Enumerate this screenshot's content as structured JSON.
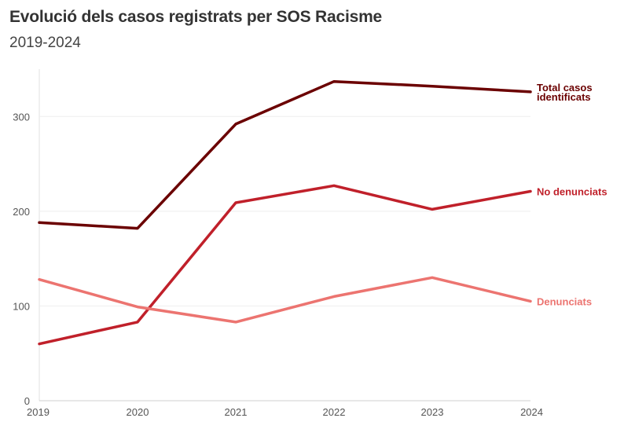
{
  "title": "Evolució dels casos registrats per SOS Racisme",
  "subtitle": "2019-2024",
  "chart_data": {
    "type": "line",
    "title": "Evolució dels casos registrats per SOS Racisme",
    "subtitle": "2019-2024",
    "x": [
      2019,
      2020,
      2021,
      2022,
      2023,
      2024
    ],
    "x_ticks": [
      "2019",
      "2020",
      "2021",
      "2022",
      "2023",
      "2024"
    ],
    "ylim": [
      0,
      350
    ],
    "y_ticks": [
      0,
      100,
      200,
      300
    ],
    "grid": true,
    "legend": "inline-right",
    "series": [
      {
        "name": "Total casos identificats",
        "label_lines": [
          "Total casos",
          "identificats"
        ],
        "color": "#6b0000",
        "values": [
          188,
          182,
          292,
          337,
          332,
          326
        ]
      },
      {
        "name": "No denunciats",
        "label_lines": [
          "No denunciats"
        ],
        "color": "#c0202a",
        "values": [
          60,
          83,
          209,
          227,
          202,
          221
        ]
      },
      {
        "name": "Denunciats",
        "label_lines": [
          "Denunciats"
        ],
        "color": "#ec7470",
        "values": [
          128,
          99,
          83,
          110,
          130,
          105
        ]
      }
    ]
  }
}
